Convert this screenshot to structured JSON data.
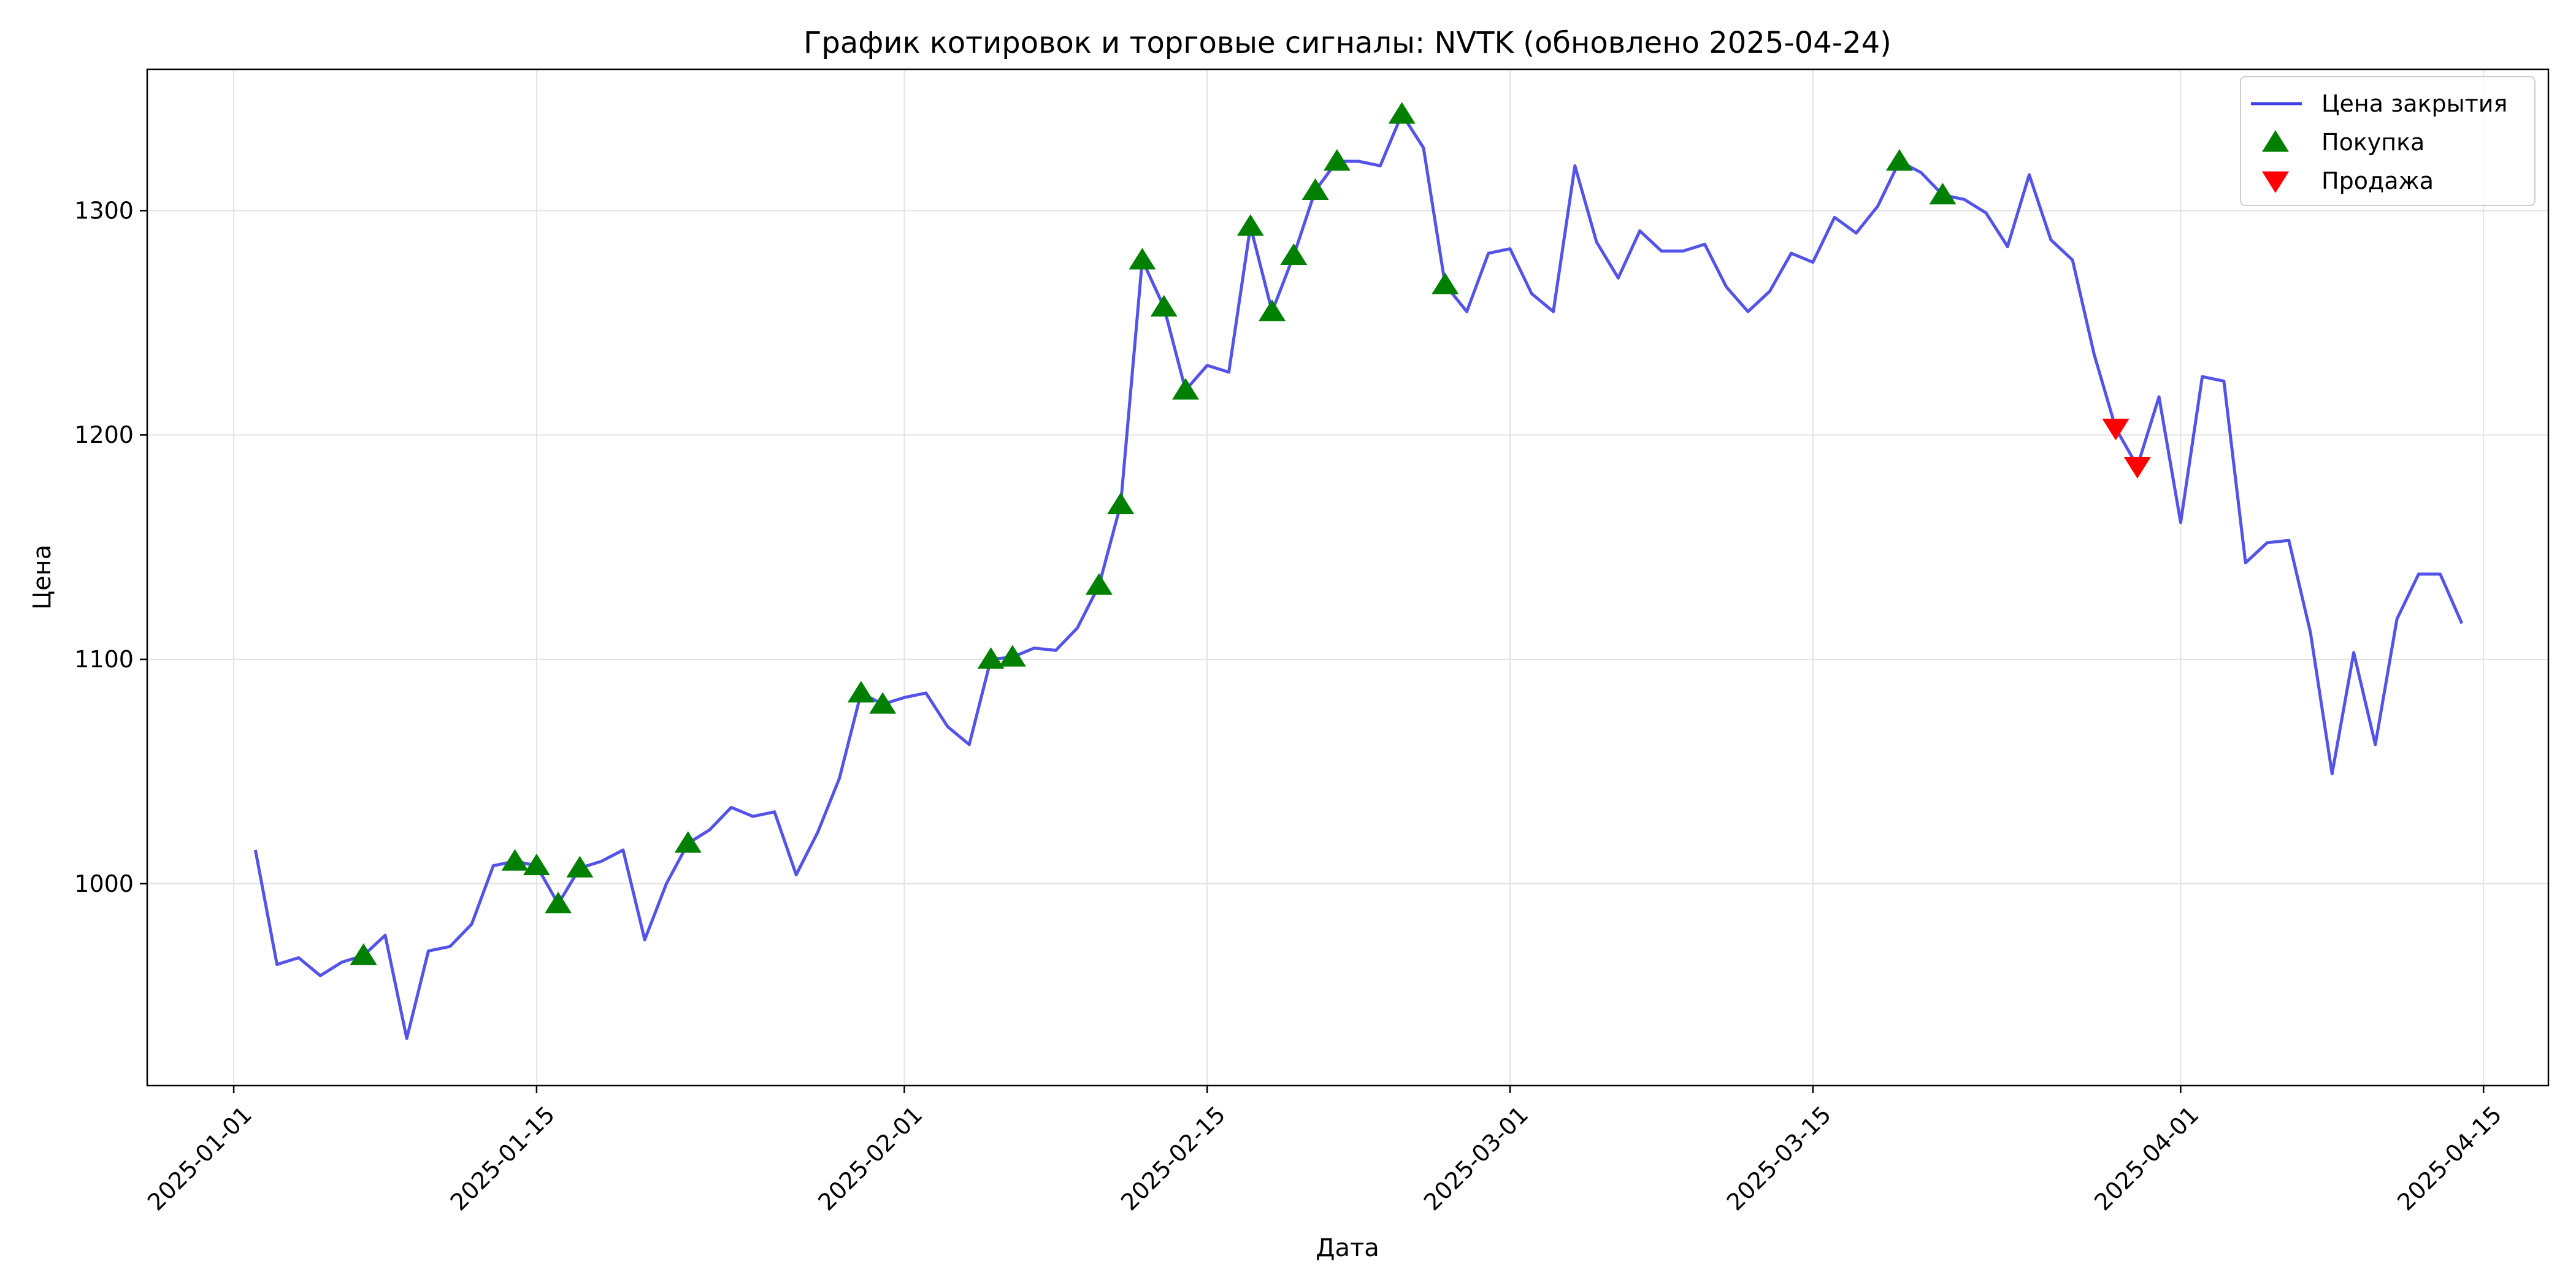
{
  "chart_data": {
    "type": "line",
    "title": "График котировок и торговые сигналы: NVTK (обновлено 2025-04-24)",
    "xlabel": "Дата",
    "ylabel": "Цена",
    "x_range": [
      "2024-12-28",
      "2025-04-18"
    ],
    "ylim": [
      910,
      1363
    ],
    "grid": true,
    "legend_position": "top-right",
    "x_ticks": [
      "2025-01-01",
      "2025-01-15",
      "2025-02-01",
      "2025-02-15",
      "2025-03-01",
      "2025-03-15",
      "2025-04-01",
      "2025-04-15"
    ],
    "y_ticks": [
      1000,
      1100,
      1200,
      1300
    ],
    "series": [
      {
        "name": "Цена закрытия",
        "kind": "line",
        "color": "#4040e8",
        "points": [
          [
            "2025-01-02",
            1015
          ],
          [
            "2025-01-03",
            964
          ],
          [
            "2025-01-04",
            967
          ],
          [
            "2025-01-05",
            959
          ],
          [
            "2025-01-06",
            965
          ],
          [
            "2025-01-07",
            968
          ],
          [
            "2025-01-08",
            977
          ],
          [
            "2025-01-09",
            931
          ],
          [
            "2025-01-10",
            970
          ],
          [
            "2025-01-11",
            972
          ],
          [
            "2025-01-12",
            982
          ],
          [
            "2025-01-13",
            1008
          ],
          [
            "2025-01-14",
            1010
          ],
          [
            "2025-01-15",
            1008
          ],
          [
            "2025-01-16",
            991
          ],
          [
            "2025-01-17",
            1007
          ],
          [
            "2025-01-18",
            1010
          ],
          [
            "2025-01-19",
            1015
          ],
          [
            "2025-01-20",
            975
          ],
          [
            "2025-01-21",
            1000
          ],
          [
            "2025-01-22",
            1018
          ],
          [
            "2025-01-23",
            1024
          ],
          [
            "2025-01-24",
            1034
          ],
          [
            "2025-01-25",
            1030
          ],
          [
            "2025-01-26",
            1032
          ],
          [
            "2025-01-27",
            1004
          ],
          [
            "2025-01-28",
            1023
          ],
          [
            "2025-01-29",
            1047
          ],
          [
            "2025-01-30",
            1085
          ],
          [
            "2025-01-31",
            1080
          ],
          [
            "2025-02-01",
            1083
          ],
          [
            "2025-02-02",
            1085
          ],
          [
            "2025-02-03",
            1070
          ],
          [
            "2025-02-04",
            1062
          ],
          [
            "2025-02-05",
            1100
          ],
          [
            "2025-02-06",
            1101
          ],
          [
            "2025-02-07",
            1105
          ],
          [
            "2025-02-08",
            1104
          ],
          [
            "2025-02-09",
            1114
          ],
          [
            "2025-02-10",
            1133
          ],
          [
            "2025-02-11",
            1169
          ],
          [
            "2025-02-12",
            1278
          ],
          [
            "2025-02-13",
            1257
          ],
          [
            "2025-02-14",
            1220
          ],
          [
            "2025-02-15",
            1231
          ],
          [
            "2025-02-16",
            1228
          ],
          [
            "2025-02-17",
            1293
          ],
          [
            "2025-02-18",
            1255
          ],
          [
            "2025-02-19",
            1280
          ],
          [
            "2025-02-20",
            1309
          ],
          [
            "2025-02-21",
            1322
          ],
          [
            "2025-02-22",
            1322
          ],
          [
            "2025-02-23",
            1320
          ],
          [
            "2025-02-24",
            1343
          ],
          [
            "2025-02-25",
            1328
          ],
          [
            "2025-02-26",
            1267
          ],
          [
            "2025-02-27",
            1255
          ],
          [
            "2025-02-28",
            1281
          ],
          [
            "2025-03-01",
            1283
          ],
          [
            "2025-03-02",
            1263
          ],
          [
            "2025-03-03",
            1255
          ],
          [
            "2025-03-04",
            1320
          ],
          [
            "2025-03-05",
            1286
          ],
          [
            "2025-03-06",
            1270
          ],
          [
            "2025-03-07",
            1291
          ],
          [
            "2025-03-08",
            1282
          ],
          [
            "2025-03-09",
            1282
          ],
          [
            "2025-03-10",
            1285
          ],
          [
            "2025-03-11",
            1266
          ],
          [
            "2025-03-12",
            1255
          ],
          [
            "2025-03-13",
            1264
          ],
          [
            "2025-03-14",
            1281
          ],
          [
            "2025-03-15",
            1277
          ],
          [
            "2025-03-16",
            1297
          ],
          [
            "2025-03-17",
            1290
          ],
          [
            "2025-03-18",
            1302
          ],
          [
            "2025-03-19",
            1322
          ],
          [
            "2025-03-20",
            1317
          ],
          [
            "2025-03-21",
            1307
          ],
          [
            "2025-03-22",
            1305
          ],
          [
            "2025-03-23",
            1299
          ],
          [
            "2025-03-24",
            1284
          ],
          [
            "2025-03-25",
            1316
          ],
          [
            "2025-03-26",
            1287
          ],
          [
            "2025-03-27",
            1278
          ],
          [
            "2025-03-28",
            1236
          ],
          [
            "2025-03-29",
            1203
          ],
          [
            "2025-03-30",
            1186
          ],
          [
            "2025-03-31",
            1217
          ],
          [
            "2025-04-01",
            1161
          ],
          [
            "2025-04-02",
            1226
          ],
          [
            "2025-04-03",
            1224
          ],
          [
            "2025-04-04",
            1143
          ],
          [
            "2025-04-05",
            1152
          ],
          [
            "2025-04-06",
            1153
          ],
          [
            "2025-04-07",
            1112
          ],
          [
            "2025-04-08",
            1049
          ],
          [
            "2025-04-09",
            1103
          ],
          [
            "2025-04-10",
            1062
          ],
          [
            "2025-04-11",
            1118
          ],
          [
            "2025-04-12",
            1138
          ],
          [
            "2025-04-13",
            1138
          ],
          [
            "2025-04-14",
            1116
          ]
        ]
      },
      {
        "name": "Покупка",
        "kind": "marker-up",
        "color": "#008000",
        "points": [
          [
            "2025-01-07",
            968
          ],
          [
            "2025-01-14",
            1010
          ],
          [
            "2025-01-15",
            1008
          ],
          [
            "2025-01-16",
            991
          ],
          [
            "2025-01-17",
            1007
          ],
          [
            "2025-01-22",
            1018
          ],
          [
            "2025-01-30",
            1085
          ],
          [
            "2025-01-31",
            1080
          ],
          [
            "2025-02-05",
            1100
          ],
          [
            "2025-02-06",
            1101
          ],
          [
            "2025-02-10",
            1133
          ],
          [
            "2025-02-11",
            1169
          ],
          [
            "2025-02-12",
            1278
          ],
          [
            "2025-02-13",
            1257
          ],
          [
            "2025-02-14",
            1220
          ],
          [
            "2025-02-17",
            1293
          ],
          [
            "2025-02-18",
            1255
          ],
          [
            "2025-02-19",
            1280
          ],
          [
            "2025-02-20",
            1309
          ],
          [
            "2025-02-21",
            1322
          ],
          [
            "2025-02-24",
            1343
          ],
          [
            "2025-02-26",
            1267
          ],
          [
            "2025-03-19",
            1322
          ],
          [
            "2025-03-21",
            1307
          ]
        ]
      },
      {
        "name": "Продажа",
        "kind": "marker-down",
        "color": "#ff0000",
        "points": [
          [
            "2025-03-29",
            1203
          ],
          [
            "2025-03-30",
            1186
          ]
        ]
      }
    ]
  }
}
